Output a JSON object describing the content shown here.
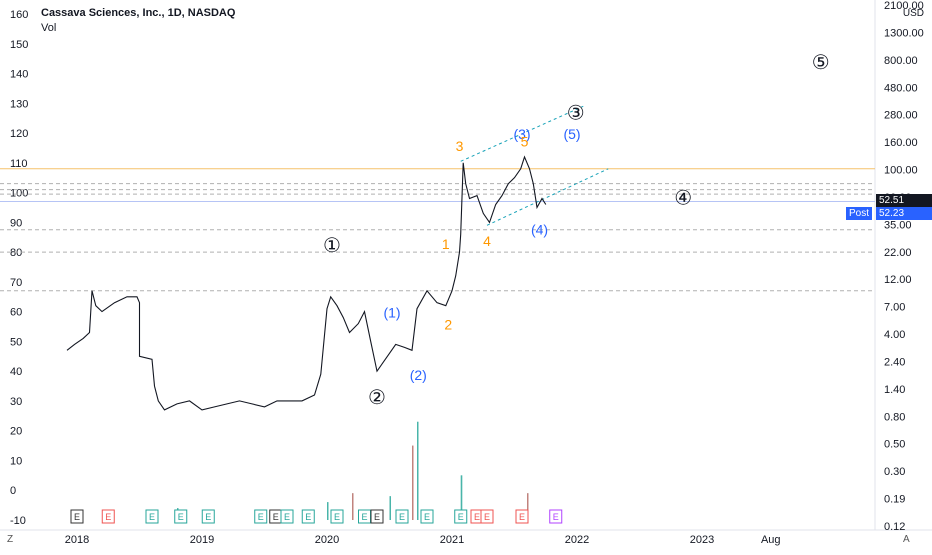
{
  "header": {
    "symbol_line": "Cassava Sciences, Inc., 1D, NASDAQ",
    "vol_label": "Vol"
  },
  "currency_unit": "USD",
  "corner_left": "Z",
  "corner_right": "A",
  "price_tag_current": "52.51",
  "post_label": "Post",
  "post_price": "52.23",
  "colors": {
    "accent_orange": "#ff9800",
    "wave_blue": "#2962ff",
    "channel_cyan": "#17a2b8",
    "current_tag_bg": "#131722",
    "post_tag_bg": "#2962ff",
    "volume_green": "#26a69a",
    "volume_red": "#ef5350"
  },
  "chart_data": {
    "type": "line",
    "title": "Cassava Sciences, Inc., 1D, NASDAQ",
    "xlabel": "",
    "ylabel": "",
    "x_ticks": [
      "2018",
      "2019",
      "2020",
      "2021",
      "2022",
      "2023",
      "Aug"
    ],
    "left_axis_ticks": [
      "160",
      "150",
      "140",
      "130",
      "120",
      "110",
      "100",
      "90",
      "80",
      "70",
      "60",
      "50",
      "40",
      "30",
      "20",
      "10",
      "0",
      "-10"
    ],
    "right_axis_ticks": [
      "2100.00",
      "1300.00",
      "800.00",
      "480.00",
      "280.00",
      "160.00",
      "100.00",
      "60.00",
      "35.00",
      "22.00",
      "12.00",
      "7.00",
      "4.00",
      "2.40",
      "1.40",
      "0.80",
      "0.50",
      "0.30",
      "0.19",
      "0.12"
    ],
    "ylim_left": [
      -10,
      160
    ],
    "grid": false,
    "legend": "none",
    "price_series": {
      "name": "",
      "points": [
        [
          2017.92,
          47
        ],
        [
          2017.98,
          49
        ],
        [
          2018.05,
          51
        ],
        [
          2018.1,
          53
        ],
        [
          2018.12,
          67
        ],
        [
          2018.15,
          62
        ],
        [
          2018.2,
          60
        ],
        [
          2018.3,
          63
        ],
        [
          2018.4,
          65
        ],
        [
          2018.48,
          65
        ],
        [
          2018.5,
          63
        ],
        [
          2018.5,
          45
        ],
        [
          2018.6,
          44
        ],
        [
          2018.62,
          35
        ],
        [
          2018.65,
          30
        ],
        [
          2018.7,
          27
        ],
        [
          2018.8,
          29
        ],
        [
          2018.9,
          30
        ],
        [
          2019.0,
          27
        ],
        [
          2019.1,
          28
        ],
        [
          2019.2,
          29
        ],
        [
          2019.3,
          30
        ],
        [
          2019.4,
          29
        ],
        [
          2019.5,
          28
        ],
        [
          2019.6,
          30
        ],
        [
          2019.7,
          30
        ],
        [
          2019.8,
          30
        ],
        [
          2019.9,
          32
        ],
        [
          2019.95,
          39
        ],
        [
          2020.0,
          61
        ],
        [
          2020.03,
          65
        ],
        [
          2020.08,
          62
        ],
        [
          2020.13,
          58
        ],
        [
          2020.18,
          53
        ],
        [
          2020.25,
          56
        ],
        [
          2020.3,
          60
        ],
        [
          2020.35,
          50
        ],
        [
          2020.4,
          40
        ],
        [
          2020.5,
          46
        ],
        [
          2020.55,
          49
        ],
        [
          2020.62,
          48
        ],
        [
          2020.68,
          47
        ],
        [
          2020.72,
          61
        ],
        [
          2020.8,
          67
        ],
        [
          2020.88,
          63
        ],
        [
          2020.95,
          62
        ],
        [
          2021.0,
          67
        ],
        [
          2021.03,
          72
        ],
        [
          2021.06,
          80
        ],
        [
          2021.07,
          86
        ],
        [
          2021.09,
          110
        ],
        [
          2021.11,
          103
        ],
        [
          2021.14,
          98
        ],
        [
          2021.2,
          99
        ],
        [
          2021.25,
          93
        ],
        [
          2021.3,
          90
        ],
        [
          2021.35,
          96
        ],
        [
          2021.4,
          99
        ],
        [
          2021.45,
          103
        ],
        [
          2021.5,
          105
        ],
        [
          2021.55,
          108
        ],
        [
          2021.58,
          112
        ],
        [
          2021.62,
          108
        ],
        [
          2021.65,
          103
        ],
        [
          2021.68,
          95
        ],
        [
          2021.72,
          98
        ],
        [
          2021.75,
          96
        ]
      ]
    },
    "volume_series": {
      "name": "",
      "spikes": [
        [
          2018.8,
          4,
          "green"
        ],
        [
          2019.55,
          3,
          "green"
        ],
        [
          2019.85,
          3,
          "green"
        ],
        [
          2020.0,
          6,
          "green"
        ],
        [
          2020.2,
          9,
          "red"
        ],
        [
          2020.5,
          8,
          "green"
        ],
        [
          2020.68,
          25,
          "red"
        ],
        [
          2020.72,
          33,
          "green"
        ],
        [
          2021.07,
          15,
          "green"
        ],
        [
          2021.6,
          9,
          "red"
        ]
      ]
    },
    "horizontal_lines": [
      {
        "y": 108,
        "style": "solid",
        "color": "orange"
      },
      {
        "y": 97,
        "style": "solid",
        "color": "blue"
      },
      {
        "y": 103,
        "style": "dashed"
      },
      {
        "y": 101,
        "style": "dashed"
      },
      {
        "y": 99.5,
        "style": "dashed"
      },
      {
        "y": 87.5,
        "style": "dashed"
      },
      {
        "y": 80,
        "style": "dashed"
      },
      {
        "y": 67,
        "style": "dashed"
      }
    ],
    "channel_lines": [
      {
        "x1": 2021.07,
        "y1": 110.5,
        "x2": 2022.05,
        "y2": 129
      },
      {
        "x1": 2021.28,
        "y1": 89,
        "x2": 2022.25,
        "y2": 108
      }
    ],
    "wave_labels": [
      {
        "text": "①",
        "x": 2020.04,
        "y": 80,
        "color": "black"
      },
      {
        "text": "②",
        "x": 2020.4,
        "y": 29,
        "color": "black"
      },
      {
        "text": "③",
        "x": 2021.99,
        "y": 124.5,
        "color": "black"
      },
      {
        "text": "④",
        "x": 2022.85,
        "y": 96,
        "color": "black"
      },
      {
        "text": "⑤",
        "x": 2023.95,
        "y": 141.5,
        "color": "black"
      },
      {
        "text": "(1)",
        "x": 2020.52,
        "y": 58,
        "color": "blue"
      },
      {
        "text": "(2)",
        "x": 2020.73,
        "y": 37,
        "color": "blue"
      },
      {
        "text": "(3)",
        "x": 2021.56,
        "y": 118,
        "color": "blue"
      },
      {
        "text": "(4)",
        "x": 2021.7,
        "y": 86,
        "color": "blue"
      },
      {
        "text": "(5)",
        "x": 2021.96,
        "y": 118,
        "color": "blue"
      },
      {
        "text": "1",
        "x": 2020.95,
        "y": 81,
        "color": "orange"
      },
      {
        "text": "2",
        "x": 2020.97,
        "y": 54,
        "color": "orange"
      },
      {
        "text": "3",
        "x": 2021.06,
        "y": 114,
        "color": "orange"
      },
      {
        "text": "4",
        "x": 2021.28,
        "y": 82,
        "color": "orange"
      },
      {
        "text": "5",
        "x": 2021.58,
        "y": 115.5,
        "color": "orange"
      }
    ],
    "event_markers": [
      {
        "x": 2018.0,
        "letter": "E",
        "color": "gray"
      },
      {
        "x": 2018.25,
        "letter": "E",
        "color": "red"
      },
      {
        "x": 2018.6,
        "letter": "E",
        "color": "green"
      },
      {
        "x": 2018.83,
        "letter": "E",
        "color": "green"
      },
      {
        "x": 2019.05,
        "letter": "E",
        "color": "green"
      },
      {
        "x": 2019.47,
        "letter": "E",
        "color": "green"
      },
      {
        "x": 2019.59,
        "letter": "E",
        "color": "gray"
      },
      {
        "x": 2019.68,
        "letter": "E",
        "color": "green"
      },
      {
        "x": 2019.85,
        "letter": "E",
        "color": "green"
      },
      {
        "x": 2020.08,
        "letter": "E",
        "color": "green"
      },
      {
        "x": 2020.3,
        "letter": "E",
        "color": "green"
      },
      {
        "x": 2020.4,
        "letter": "E",
        "color": "gray"
      },
      {
        "x": 2020.6,
        "letter": "E",
        "color": "green"
      },
      {
        "x": 2020.8,
        "letter": "E",
        "color": "green"
      },
      {
        "x": 2021.07,
        "letter": "E",
        "color": "green"
      },
      {
        "x": 2021.2,
        "letter": "E",
        "color": "red"
      },
      {
        "x": 2021.28,
        "letter": "E",
        "color": "red"
      },
      {
        "x": 2021.56,
        "letter": "E",
        "color": "red"
      },
      {
        "x": 2021.83,
        "letter": "E",
        "color": "purple"
      }
    ]
  }
}
